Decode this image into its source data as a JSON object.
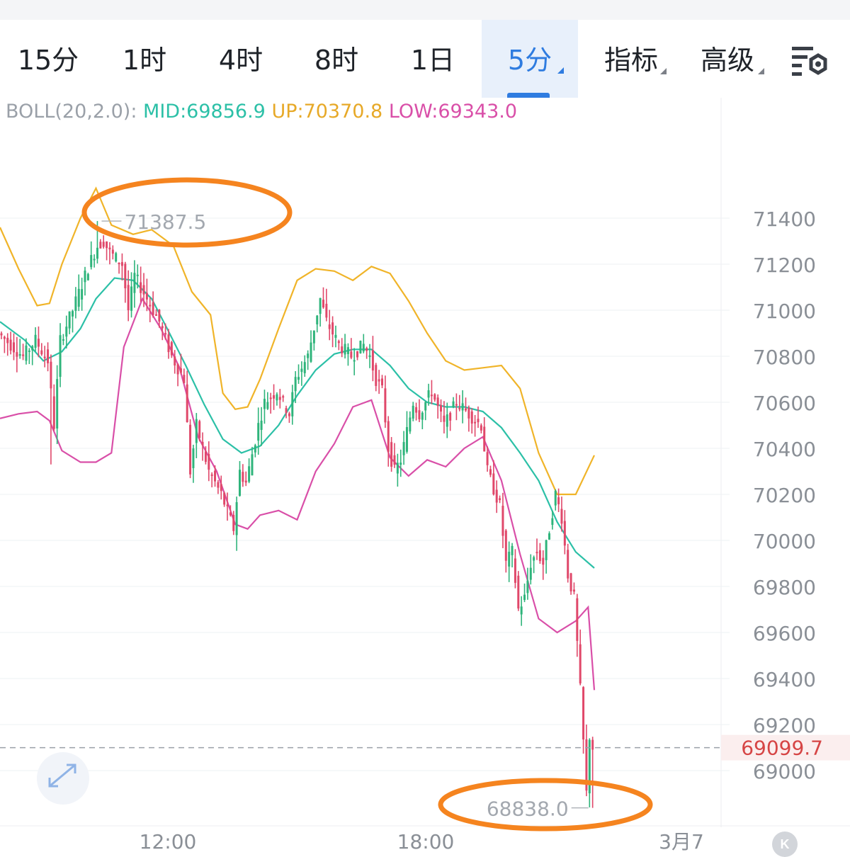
{
  "tabs": [
    {
      "label": "15分",
      "active": false,
      "dropdown": false
    },
    {
      "label": "1时",
      "active": false,
      "dropdown": false
    },
    {
      "label": "4时",
      "active": false,
      "dropdown": false
    },
    {
      "label": "8时",
      "active": false,
      "dropdown": false
    },
    {
      "label": "1日",
      "active": false,
      "dropdown": false
    },
    {
      "label": "5分",
      "active": true,
      "dropdown": true
    },
    {
      "label": "指标",
      "active": false,
      "dropdown": true
    },
    {
      "label": "高级",
      "active": false,
      "dropdown": true
    }
  ],
  "icons": {
    "settings": "chart-settings-icon",
    "expand": "expand-arrows-icon",
    "k_button": "k-icon"
  },
  "indicator": {
    "name": "BOLL(20,2.0):",
    "mid": "MID:69856.9",
    "up": "UP:70370.8",
    "low": "LOW:69343.0"
  },
  "k_button_label": "K",
  "colors": {
    "up_candle": "#2fb47b",
    "down_candle": "#e0486a",
    "mid": "#2cc0a7",
    "upper": "#f0b429",
    "lower": "#d94fa8",
    "active_tab": "#2f7ce0",
    "highlight": "#f5841f",
    "price_marker": "#d64545"
  },
  "chart_data": {
    "type": "candlestick",
    "interval": "5分",
    "ylim": [
      68750,
      71600
    ],
    "y_ticks": [
      71400,
      71200,
      71000,
      70800,
      70600,
      70400,
      70200,
      70000,
      69800,
      69600,
      69400,
      69200,
      69000
    ],
    "x_ticks": [
      "12:00",
      "18:00",
      "3月7"
    ],
    "grid": true,
    "high_label": "71387.5",
    "low_label": "68838.0",
    "current_price": "69099.7",
    "bollinger": {
      "mid": [
        [
          0,
          70950
        ],
        [
          8,
          70870
        ],
        [
          14,
          70780
        ],
        [
          20,
          70820
        ],
        [
          26,
          70920
        ],
        [
          31,
          71050
        ],
        [
          37,
          71140
        ],
        [
          43,
          71130
        ],
        [
          49,
          71050
        ],
        [
          54,
          70920
        ],
        [
          60,
          70760
        ],
        [
          66,
          70590
        ],
        [
          72,
          70440
        ],
        [
          78,
          70380
        ],
        [
          84,
          70410
        ],
        [
          90,
          70500
        ],
        [
          96,
          70630
        ],
        [
          102,
          70740
        ],
        [
          108,
          70810
        ],
        [
          114,
          70830
        ],
        [
          120,
          70830
        ],
        [
          126,
          70760
        ],
        [
          132,
          70660
        ],
        [
          138,
          70600
        ],
        [
          144,
          70580
        ],
        [
          150,
          70580
        ],
        [
          156,
          70560
        ],
        [
          162,
          70490
        ],
        [
          168,
          70380
        ],
        [
          174,
          70260
        ],
        [
          180,
          70080
        ],
        [
          186,
          69950
        ],
        [
          192,
          69880
        ]
      ],
      "upper": [
        [
          0,
          71360
        ],
        [
          6,
          71180
        ],
        [
          12,
          71020
        ],
        [
          16,
          71030
        ],
        [
          20,
          71200
        ],
        [
          26,
          71400
        ],
        [
          31,
          71530
        ],
        [
          36,
          71370
        ],
        [
          43,
          71330
        ],
        [
          49,
          71350
        ],
        [
          56,
          71280
        ],
        [
          62,
          71080
        ],
        [
          68,
          70980
        ],
        [
          72,
          70640
        ],
        [
          76,
          70570
        ],
        [
          80,
          70580
        ],
        [
          84,
          70700
        ],
        [
          90,
          70920
        ],
        [
          96,
          71130
        ],
        [
          102,
          71180
        ],
        [
          108,
          71170
        ],
        [
          114,
          71130
        ],
        [
          120,
          71190
        ],
        [
          126,
          71160
        ],
        [
          132,
          71040
        ],
        [
          138,
          70900
        ],
        [
          144,
          70780
        ],
        [
          150,
          70740
        ],
        [
          156,
          70750
        ],
        [
          162,
          70760
        ],
        [
          168,
          70660
        ],
        [
          174,
          70380
        ],
        [
          180,
          70200
        ],
        [
          186,
          70200
        ],
        [
          192,
          70370
        ]
      ],
      "lower": [
        [
          0,
          70530
        ],
        [
          6,
          70550
        ],
        [
          12,
          70560
        ],
        [
          16,
          70520
        ],
        [
          20,
          70390
        ],
        [
          26,
          70340
        ],
        [
          31,
          70340
        ],
        [
          36,
          70380
        ],
        [
          40,
          70840
        ],
        [
          46,
          71050
        ],
        [
          52,
          70920
        ],
        [
          58,
          70750
        ],
        [
          64,
          70450
        ],
        [
          70,
          70300
        ],
        [
          76,
          70070
        ],
        [
          80,
          70050
        ],
        [
          84,
          70110
        ],
        [
          90,
          70130
        ],
        [
          96,
          70090
        ],
        [
          102,
          70300
        ],
        [
          108,
          70420
        ],
        [
          114,
          70580
        ],
        [
          120,
          70610
        ],
        [
          126,
          70360
        ],
        [
          132,
          70280
        ],
        [
          138,
          70350
        ],
        [
          144,
          70320
        ],
        [
          150,
          70400
        ],
        [
          156,
          70450
        ],
        [
          162,
          70260
        ],
        [
          168,
          69940
        ],
        [
          174,
          69660
        ],
        [
          180,
          69600
        ],
        [
          186,
          69650
        ],
        [
          190,
          69710
        ],
        [
          192,
          69350
        ]
      ]
    },
    "price_path": [
      [
        0,
        70900
      ],
      [
        4,
        70850
      ],
      [
        8,
        70800
      ],
      [
        12,
        70870
      ],
      [
        16,
        70780
      ],
      [
        18,
        70500
      ],
      [
        20,
        70870
      ],
      [
        24,
        71000
      ],
      [
        28,
        71150
      ],
      [
        30,
        71220
      ],
      [
        32,
        71280
      ],
      [
        34,
        71300
      ],
      [
        36,
        71250
      ],
      [
        40,
        71200
      ],
      [
        42,
        71000
      ],
      [
        44,
        71150
      ],
      [
        48,
        71050
      ],
      [
        52,
        70950
      ],
      [
        56,
        70800
      ],
      [
        60,
        70700
      ],
      [
        62,
        70300
      ],
      [
        64,
        70500
      ],
      [
        66,
        70400
      ],
      [
        68,
        70300
      ],
      [
        72,
        70200
      ],
      [
        76,
        70050
      ],
      [
        78,
        70300
      ],
      [
        80,
        70250
      ],
      [
        84,
        70500
      ],
      [
        86,
        70600
      ],
      [
        90,
        70650
      ],
      [
        94,
        70550
      ],
      [
        96,
        70700
      ],
      [
        100,
        70800
      ],
      [
        104,
        71050
      ],
      [
        106,
        70950
      ],
      [
        110,
        70850
      ],
      [
        114,
        70800
      ],
      [
        118,
        70850
      ],
      [
        120,
        70800
      ],
      [
        122,
        70700
      ],
      [
        124,
        70650
      ],
      [
        126,
        70400
      ],
      [
        128,
        70300
      ],
      [
        130,
        70350
      ],
      [
        134,
        70600
      ],
      [
        136,
        70550
      ],
      [
        140,
        70650
      ],
      [
        144,
        70500
      ],
      [
        148,
        70600
      ],
      [
        152,
        70550
      ],
      [
        156,
        70500
      ],
      [
        158,
        70300
      ],
      [
        162,
        70150
      ],
      [
        164,
        69900
      ],
      [
        166,
        69950
      ],
      [
        168,
        69700
      ],
      [
        170,
        69750
      ],
      [
        172,
        69900
      ],
      [
        174,
        69950
      ],
      [
        176,
        69900
      ],
      [
        178,
        70050
      ],
      [
        180,
        70200
      ],
      [
        182,
        70100
      ],
      [
        184,
        69850
      ],
      [
        186,
        69750
      ],
      [
        188,
        69350
      ],
      [
        190,
        68900
      ],
      [
        191,
        69150
      ],
      [
        192,
        69100
      ]
    ]
  }
}
